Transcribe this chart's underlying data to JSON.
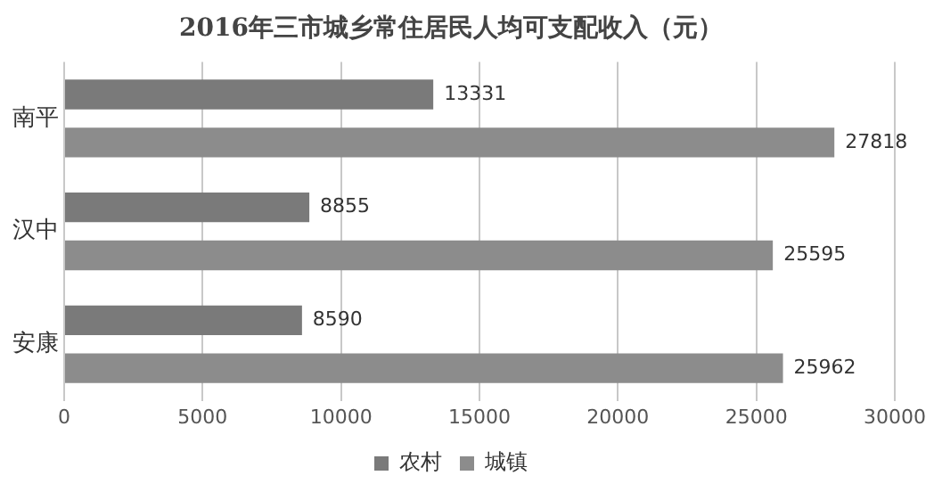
{
  "chart_data": {
    "type": "bar",
    "orientation": "horizontal",
    "title": "2016年三市城乡常住居民人均可支配收入（元）",
    "categories": [
      "南平",
      "汉中",
      "安康"
    ],
    "series": [
      {
        "name": "农村",
        "color": "#7a7a7a",
        "values": [
          13331,
          8855,
          8590
        ]
      },
      {
        "name": "城镇",
        "color": "#8c8c8c",
        "values": [
          27818,
          25595,
          25962
        ]
      }
    ],
    "xlim": [
      0,
      30000
    ],
    "xticks": [
      0,
      5000,
      10000,
      15000,
      20000,
      25000,
      30000
    ],
    "grid": "x",
    "legend": "bottom",
    "data_labels": true
  }
}
